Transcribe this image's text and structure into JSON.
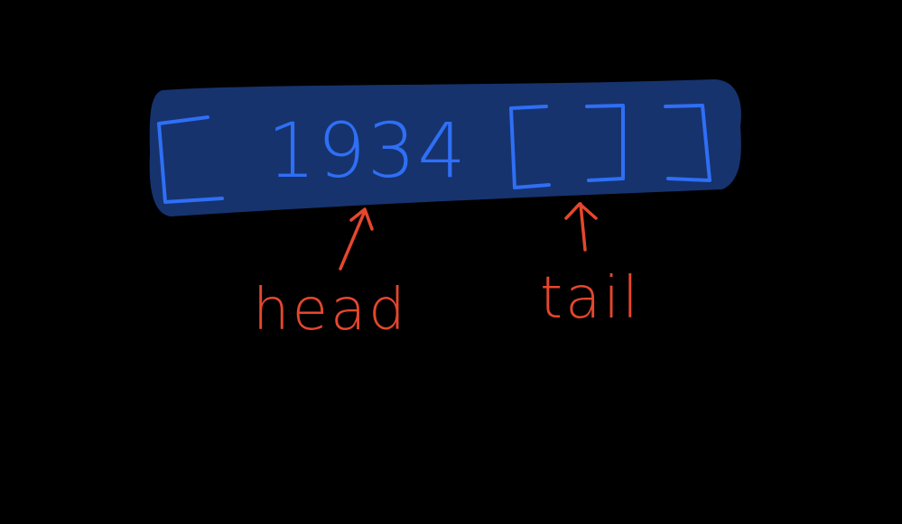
{
  "diagram": {
    "array_value": "1934",
    "head_label": "head",
    "tail_label": "tail",
    "colors": {
      "background": "#000000",
      "highlight": "#16336e",
      "blue_ink": "#2f6ff5",
      "red_ink": "#e5472d"
    }
  }
}
